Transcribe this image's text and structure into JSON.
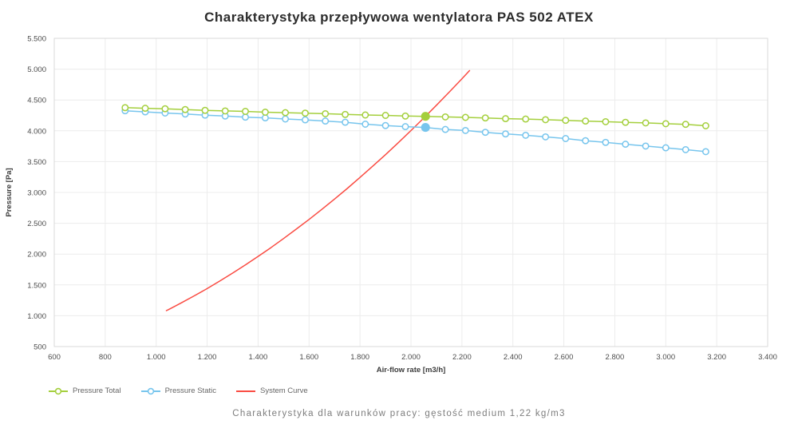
{
  "title": {
    "text": "Charakterystyka przepływowa wentylatora PAS 502 ATEX"
  },
  "subtitle": {
    "text": "Charakterystyka dla warunków pracy: gęstość medium 1,22 kg/m3"
  },
  "colors": {
    "pressure_total": "#a4cf3c",
    "pressure_static": "#77c5ed",
    "system_curve": "#fa4b42",
    "grid": "#ececec",
    "plot_border": "#d9d9d9"
  },
  "legend": {
    "items": [
      {
        "label": "Pressure Total",
        "color": "#a4cf3c",
        "marker": "line-circle"
      },
      {
        "label": "Pressure Static",
        "color": "#77c5ed",
        "marker": "line-circle"
      },
      {
        "label": "System Curve",
        "color": "#fa4b42",
        "marker": "line"
      }
    ]
  },
  "chart_data": {
    "type": "line",
    "title": "Charakterystyka przepływowa wentylatora PAS 502 ATEX",
    "xlabel": "Air-flow rate [m3/h]",
    "ylabel": "Pressure [Pa]",
    "xlim": [
      600,
      3400
    ],
    "ylim": [
      500,
      5500
    ],
    "grid": true,
    "legend_position": "bottom-left",
    "x_ticks": {
      "values": [
        600,
        800,
        1000,
        1200,
        1400,
        1600,
        1800,
        2000,
        2200,
        2400,
        2600,
        2800,
        3000,
        3200,
        3400
      ],
      "labels": [
        "600",
        "800",
        "1.000",
        "1.200",
        "1.400",
        "1.600",
        "1.800",
        "2.000",
        "2.200",
        "2.400",
        "2.600",
        "2.800",
        "3.000",
        "3.200",
        "3.400"
      ]
    },
    "y_ticks": {
      "values": [
        500,
        1000,
        1500,
        2000,
        2500,
        3000,
        3500,
        4000,
        4500,
        5000,
        5500
      ],
      "labels": [
        "500",
        "1.000",
        "1.500",
        "2.000",
        "2.500",
        "3.000",
        "3.500",
        "4.000",
        "4.500",
        "5.000",
        "5.500"
      ]
    },
    "series": [
      {
        "name": "Pressure Total",
        "color": "#a4cf3c",
        "marker": "circle-open",
        "filled_point_index": 15,
        "x": [
          878,
          957,
          1035,
          1114,
          1192,
          1271,
          1350,
          1428,
          1507,
          1585,
          1664,
          1742,
          1821,
          1900,
          1978,
          2057,
          2135,
          2214,
          2292,
          2371,
          2450,
          2528,
          2607,
          2685,
          2764,
          2842,
          2921,
          3000,
          3078,
          3157
        ],
        "y": [
          4375,
          4365,
          4357,
          4345,
          4332,
          4322,
          4315,
          4302,
          4294,
          4286,
          4277,
          4266,
          4256,
          4250,
          4240,
          4235,
          4225,
          4218,
          4208,
          4197,
          4190,
          4180,
          4170,
          4158,
          4148,
          4137,
          4128,
          4115,
          4105,
          4082
        ]
      },
      {
        "name": "Pressure Static",
        "color": "#77c5ed",
        "marker": "circle-open",
        "filled_point_index": 15,
        "x": [
          878,
          957,
          1035,
          1114,
          1192,
          1271,
          1350,
          1428,
          1507,
          1585,
          1664,
          1742,
          1821,
          1900,
          1978,
          2057,
          2135,
          2214,
          2292,
          2371,
          2450,
          2528,
          2607,
          2685,
          2764,
          2842,
          2921,
          3000,
          3078,
          3157
        ],
        "y": [
          4325,
          4307,
          4289,
          4272,
          4254,
          4240,
          4222,
          4210,
          4192,
          4177,
          4158,
          4138,
          4108,
          4086,
          4068,
          4055,
          4022,
          4005,
          3976,
          3950,
          3927,
          3901,
          3874,
          3840,
          3812,
          3782,
          3753,
          3724,
          3694,
          3662
        ]
      },
      {
        "name": "System Curve",
        "color": "#fa4b42",
        "marker": "none",
        "filled_point_index": null,
        "x": [
          1040,
          1050,
          1100,
          1150,
          1200,
          1250,
          1300,
          1350,
          1400,
          1450,
          1500,
          1550,
          1600,
          1650,
          1700,
          1750,
          1800,
          1850,
          1900,
          1950,
          2000,
          2050,
          2100,
          2150,
          2200,
          2230
        ],
        "y": [
          1083,
          1103,
          1211,
          1324,
          1441,
          1564,
          1692,
          1824,
          1962,
          2104,
          2252,
          2405,
          2562,
          2725,
          2893,
          3065,
          3243,
          3426,
          3613,
          3806,
          4004,
          4206,
          4414,
          4627,
          4844,
          4977
        ]
      }
    ],
    "operating_point": {
      "air_flow": 2057,
      "pressure_total": 4235,
      "pressure_static": 4055,
      "point_index": 15
    }
  }
}
